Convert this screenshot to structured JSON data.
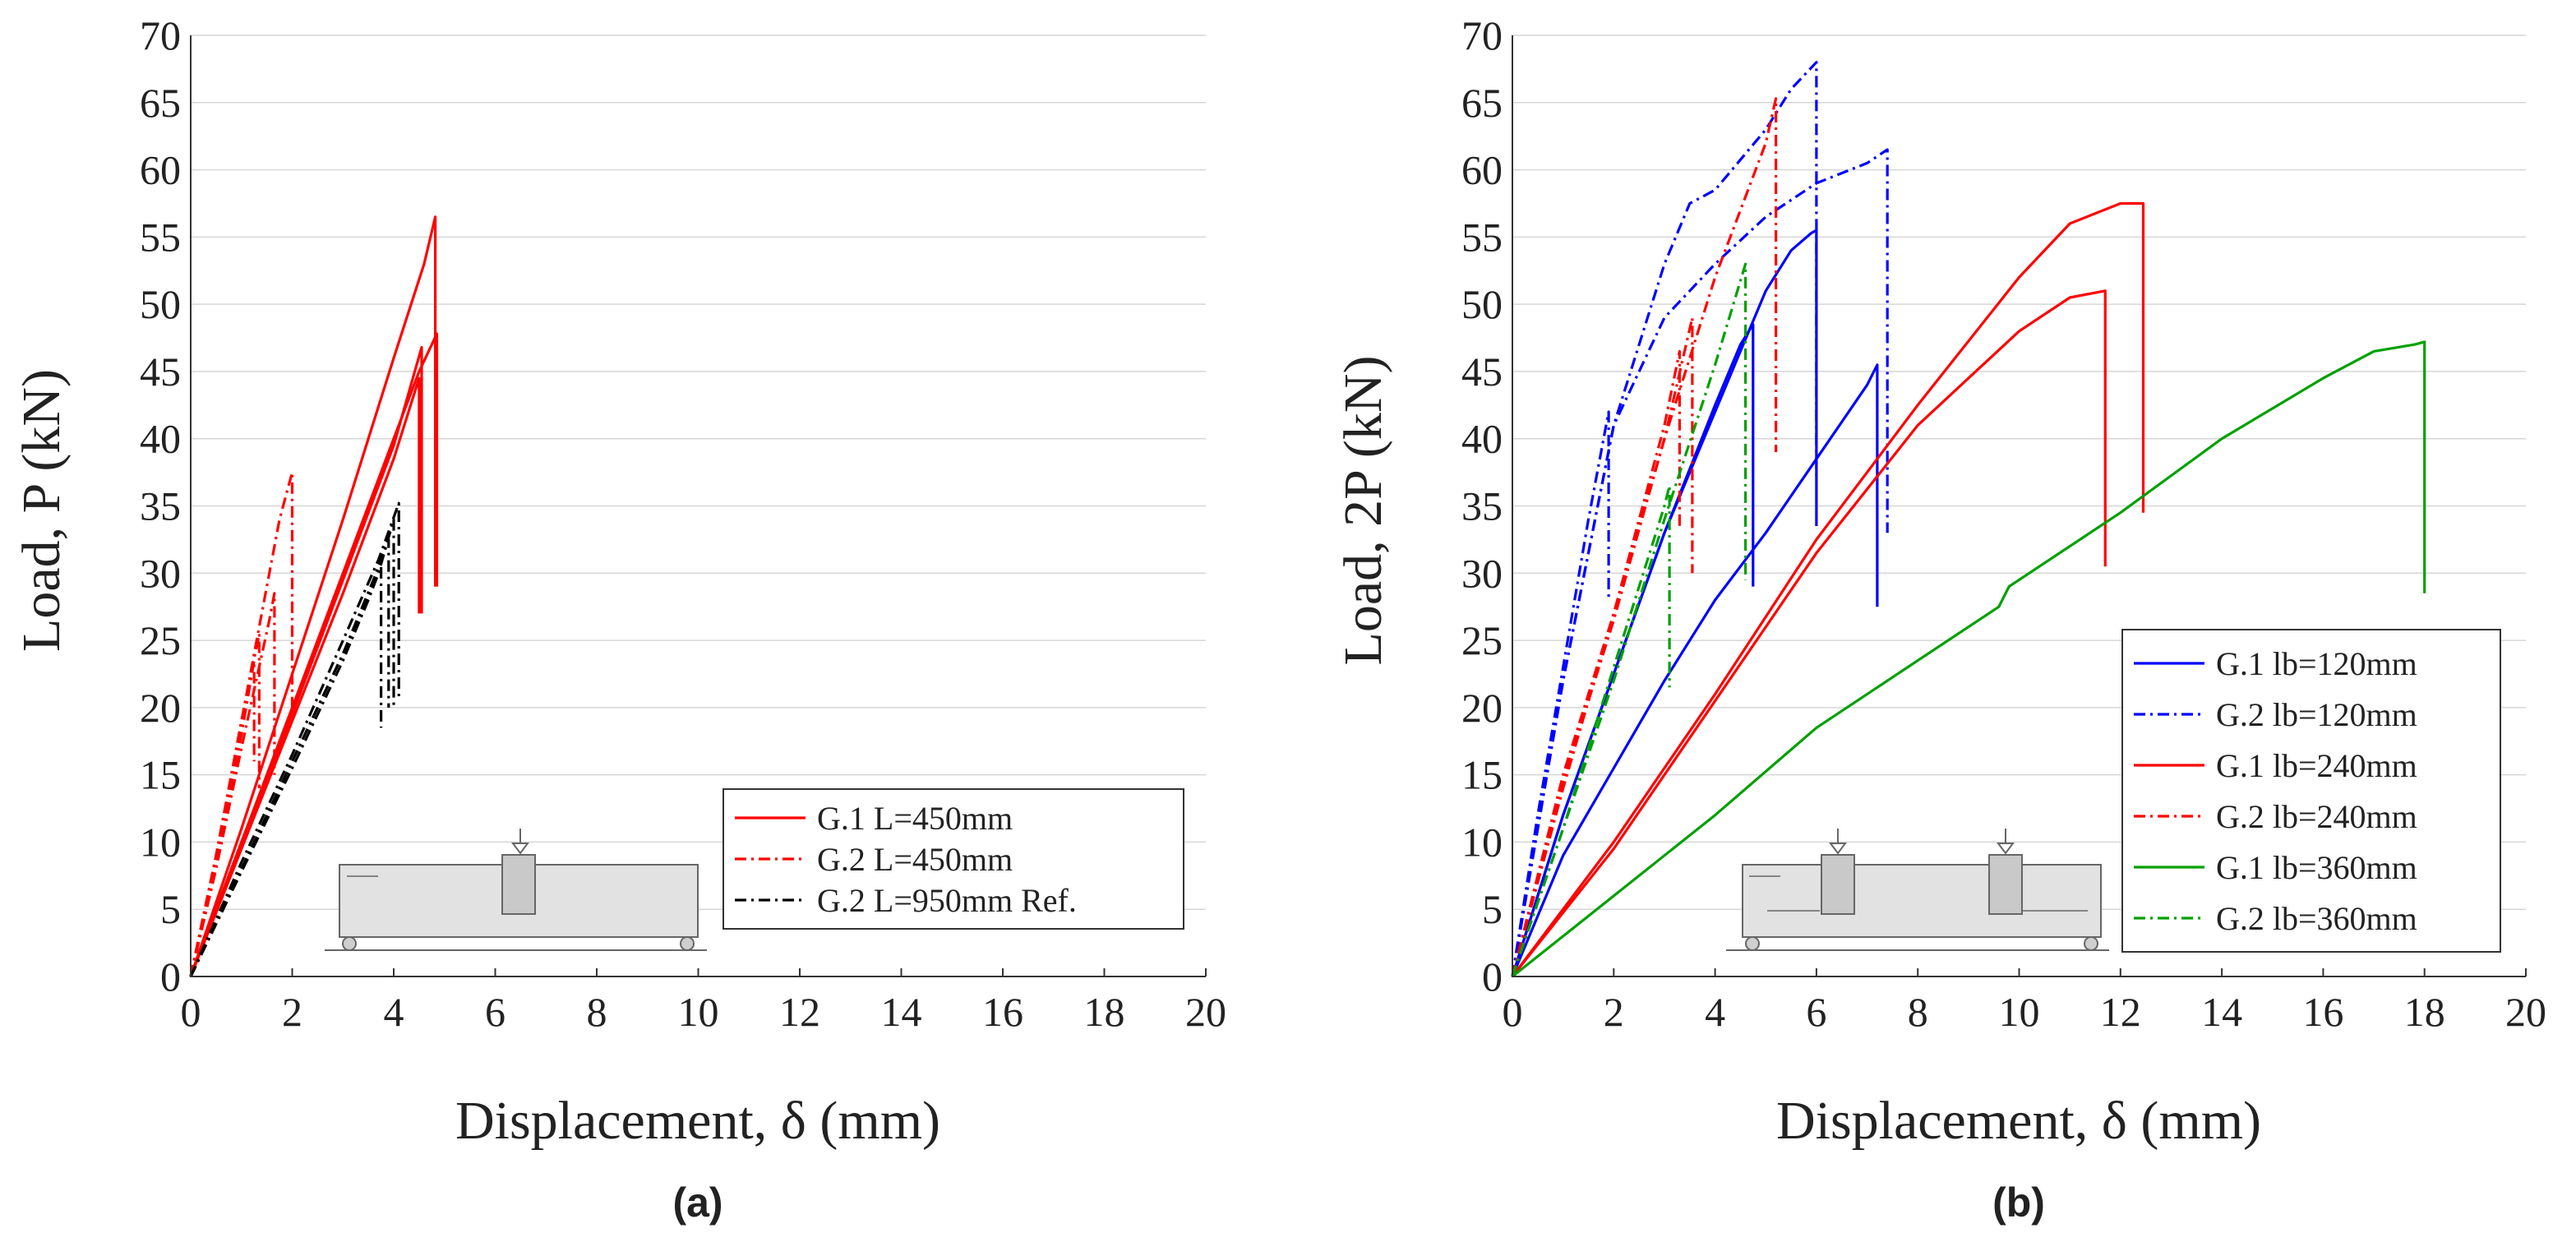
{
  "chart_data": [
    {
      "type": "line",
      "panel_label": "(a)",
      "xlabel": "Displacement, δ (mm)",
      "ylabel": "Load, P (kN)",
      "xlim": [
        0,
        20
      ],
      "ylim": [
        0,
        70
      ],
      "xticks": [
        0,
        2,
        4,
        6,
        8,
        10,
        12,
        14,
        16,
        18,
        20
      ],
      "yticks": [
        0,
        5,
        10,
        15,
        20,
        25,
        30,
        35,
        40,
        45,
        50,
        55,
        60,
        65,
        70
      ],
      "grid": "horizontal",
      "legend": {
        "placement": "bottom-right",
        "entries": [
          {
            "label": "G.1 L=450mm",
            "color": "#ff0000",
            "style": "solid"
          },
          {
            "label": "G.2 L=450mm",
            "color": "#ff0000",
            "style": "dashdot"
          },
          {
            "label": "G.2 L=950mm Ref.",
            "color": "#000000",
            "style": "dashdot"
          }
        ]
      },
      "series": [
        {
          "name": "G.1 L=450mm",
          "color": "#ff0000",
          "style": "solid",
          "x": [
            0,
            1,
            2,
            3,
            4,
            4.6,
            4.82,
            4.82
          ],
          "y": [
            0,
            11,
            22.5,
            34,
            46,
            53,
            56.5,
            29
          ]
        },
        {
          "name": "G.1 L=450mm",
          "color": "#ff0000",
          "style": "solid",
          "x": [
            0,
            1,
            2,
            3,
            4,
            4.5,
            4.85,
            4.85
          ],
          "y": [
            0,
            10,
            20,
            30,
            40,
            45,
            47.8,
            29
          ]
        },
        {
          "name": "G.1 L=450mm",
          "color": "#ff0000",
          "style": "solid",
          "x": [
            0,
            1,
            2,
            3,
            4,
            4.55,
            4.55
          ],
          "y": [
            0,
            10,
            19.5,
            29.5,
            39.5,
            46.8,
            27
          ]
        },
        {
          "name": "G.1 L=450mm",
          "color": "#ff0000",
          "style": "solid",
          "x": [
            0,
            1,
            2,
            3,
            4,
            4.5,
            4.5
          ],
          "y": [
            0,
            9.5,
            19,
            28.5,
            38.5,
            44.5,
            27
          ]
        },
        {
          "name": "G.2 L=450mm",
          "color": "#ff0000",
          "style": "dashdot",
          "x": [
            0,
            0.5,
            1,
            1.5,
            1.75,
            2.0,
            2.0
          ],
          "y": [
            0,
            9,
            19,
            29,
            34,
            37.5,
            20
          ]
        },
        {
          "name": "G.2 L=450mm",
          "color": "#ff0000",
          "style": "dashdot",
          "x": [
            0,
            0.5,
            1,
            1.35,
            1.35
          ],
          "y": [
            0,
            9,
            19,
            25.5,
            14
          ]
        },
        {
          "name": "G.2 L=450mm",
          "color": "#ff0000",
          "style": "dashdot",
          "x": [
            0,
            0.5,
            1,
            1.55,
            1.65,
            1.65
          ],
          "y": [
            0,
            8,
            17,
            26.5,
            28.5,
            15
          ]
        },
        {
          "name": "G.2 L=450mm",
          "color": "#ff0000",
          "style": "dashdot",
          "x": [
            0,
            0.5,
            1,
            1.25,
            1.25
          ],
          "y": [
            0,
            8.5,
            18,
            23.5,
            16
          ]
        },
        {
          "name": "G.2 L=950mm Ref.",
          "color": "#000000",
          "style": "dashdot",
          "x": [
            0,
            1,
            2,
            3,
            3.7,
            4.1,
            4.1
          ],
          "y": [
            0,
            8.5,
            16.5,
            25,
            31,
            35.2,
            20.5
          ]
        },
        {
          "name": "G.2 L=950mm Ref.",
          "color": "#000000",
          "style": "dashdot",
          "x": [
            0,
            1,
            2,
            3,
            3.7,
            4.0,
            4.0
          ],
          "y": [
            0,
            8,
            16,
            24,
            30,
            34,
            20
          ]
        },
        {
          "name": "G.2 L=950mm Ref.",
          "color": "#000000",
          "style": "dashdot",
          "x": [
            0,
            1,
            2,
            3,
            3.6,
            3.9,
            3.9
          ],
          "y": [
            0,
            8,
            16,
            24,
            29.5,
            32.5,
            20
          ]
        },
        {
          "name": "G.2 L=950mm Ref.",
          "color": "#000000",
          "style": "dashdot",
          "x": [
            0,
            1,
            2,
            3,
            3.5,
            3.75,
            3.75
          ],
          "y": [
            0,
            7.8,
            15.5,
            23.5,
            28,
            30.5,
            18.5
          ]
        }
      ]
    },
    {
      "type": "line",
      "panel_label": "(b)",
      "xlabel": "Displacement, δ (mm)",
      "ylabel": "Load, 2P (kN)",
      "xlim": [
        0,
        20
      ],
      "ylim": [
        0,
        70
      ],
      "xticks": [
        0,
        2,
        4,
        6,
        8,
        10,
        12,
        14,
        16,
        18,
        20
      ],
      "yticks": [
        0,
        5,
        10,
        15,
        20,
        25,
        30,
        35,
        40,
        45,
        50,
        55,
        60,
        65,
        70
      ],
      "grid": "horizontal",
      "legend": {
        "placement": "bottom-right",
        "entries": [
          {
            "label": "G.1 lb=120mm",
            "color": "#0000ff",
            "style": "solid"
          },
          {
            "label": "G.2 lb=120mm",
            "color": "#0000ff",
            "style": "dashdot"
          },
          {
            "label": "G.1 lb=240mm",
            "color": "#ff0000",
            "style": "solid"
          },
          {
            "label": "G.2 lb=240mm",
            "color": "#ff0000",
            "style": "dashdot"
          },
          {
            "label": "G.1 lb=360mm",
            "color": "#00a000",
            "style": "solid"
          },
          {
            "label": "G.2 lb=360mm",
            "color": "#00a000",
            "style": "dashdot"
          }
        ]
      },
      "series": [
        {
          "name": "G.1 lb=120mm",
          "color": "#0000ff",
          "style": "solid",
          "x": [
            0,
            1,
            2,
            3,
            4,
            4.5,
            5,
            5.5,
            5.9,
            6.0,
            6.0
          ],
          "y": [
            0,
            12,
            22.5,
            33,
            42,
            46.5,
            51,
            54,
            55.3,
            55.5,
            33.5
          ]
        },
        {
          "name": "G.1 lb=120mm",
          "color": "#0000ff",
          "style": "solid",
          "x": [
            0,
            1,
            2,
            3,
            4,
            4.5,
            4.75,
            4.75
          ],
          "y": [
            0,
            12,
            22.5,
            33,
            42.5,
            47,
            48.5,
            29
          ]
        },
        {
          "name": "G.1 lb=120mm",
          "color": "#0000ff",
          "style": "solid",
          "x": [
            0,
            1,
            2,
            3,
            4,
            5,
            6,
            7,
            7.2,
            7.2
          ],
          "y": [
            0,
            9,
            15.5,
            22,
            28,
            33,
            38.5,
            44,
            45.5,
            27.5
          ]
        },
        {
          "name": "G.2 lb=120mm",
          "color": "#0000ff",
          "style": "dashdot",
          "x": [
            0,
            0.5,
            1,
            1.5,
            1.9,
            1.9
          ],
          "y": [
            0,
            12,
            23,
            34,
            42,
            28
          ]
        },
        {
          "name": "G.2 lb=120mm",
          "color": "#0000ff",
          "style": "dashdot",
          "x": [
            0,
            1,
            2,
            3,
            4,
            5,
            6,
            7,
            7.4,
            7.4
          ],
          "y": [
            0,
            22,
            41,
            49,
            53,
            56.5,
            59,
            60.5,
            61.5,
            33
          ]
        },
        {
          "name": "G.2 lb=120mm",
          "color": "#0000ff",
          "style": "dashdot",
          "x": [
            0,
            1,
            2,
            3,
            3.5,
            4,
            5,
            5.5,
            6.0,
            6.0
          ],
          "y": [
            0,
            22,
            41,
            53,
            57.5,
            58.5,
            63,
            66,
            68,
            37
          ]
        },
        {
          "name": "G.1 lb=240mm",
          "color": "#ff0000",
          "style": "solid",
          "x": [
            0,
            2,
            4,
            6,
            8,
            10,
            11,
            12,
            12.45,
            12.45
          ],
          "y": [
            0,
            10,
            21,
            32.5,
            42.5,
            52,
            56,
            57.5,
            57.5,
            34.5
          ]
        },
        {
          "name": "G.1 lb=240mm",
          "color": "#ff0000",
          "style": "solid",
          "x": [
            0,
            2,
            4,
            6,
            8,
            10,
            11,
            11.7,
            11.7
          ],
          "y": [
            0,
            9.5,
            20.5,
            31.5,
            41,
            48,
            50.5,
            51,
            30.5
          ]
        },
        {
          "name": "G.2 lb=240mm",
          "color": "#ff0000",
          "style": "dashdot",
          "x": [
            0,
            1,
            2,
            3,
            3.3,
            3.3
          ],
          "y": [
            0,
            15,
            27,
            41,
            46.5,
            33.5
          ]
        },
        {
          "name": "G.2 lb=240mm",
          "color": "#ff0000",
          "style": "dashdot",
          "x": [
            0,
            1,
            2,
            3,
            3.55,
            3.55
          ],
          "y": [
            0,
            14.5,
            26.5,
            40,
            49,
            30
          ]
        },
        {
          "name": "G.2 lb=240mm",
          "color": "#ff0000",
          "style": "dashdot",
          "x": [
            0,
            1,
            2,
            3,
            4,
            5,
            5.2,
            5.2
          ],
          "y": [
            0,
            14,
            27,
            40,
            52,
            62,
            65.3,
            39
          ]
        },
        {
          "name": "G.1 lb=360mm",
          "color": "#00a000",
          "style": "solid",
          "x": [
            0,
            2,
            4,
            6,
            8,
            9.6,
            9.8,
            12,
            14,
            16,
            17,
            17.8,
            18.0,
            18.0
          ],
          "y": [
            0,
            6,
            12,
            18.5,
            23.5,
            27.5,
            29,
            34.5,
            40,
            44.5,
            46.5,
            47,
            47.2,
            28.5
          ]
        },
        {
          "name": "G.2 lb=360mm",
          "color": "#00a000",
          "style": "dashdot",
          "x": [
            0,
            1,
            2,
            3,
            3.1,
            3.1
          ],
          "y": [
            0,
            11,
            23,
            35,
            36.5,
            21.5
          ]
        },
        {
          "name": "G.2 lb=360mm",
          "color": "#00a000",
          "style": "dashdot",
          "x": [
            0,
            1,
            2,
            3,
            4,
            4.6,
            4.6
          ],
          "y": [
            0,
            11,
            22,
            34,
            45.5,
            53,
            29.5
          ]
        }
      ]
    }
  ]
}
